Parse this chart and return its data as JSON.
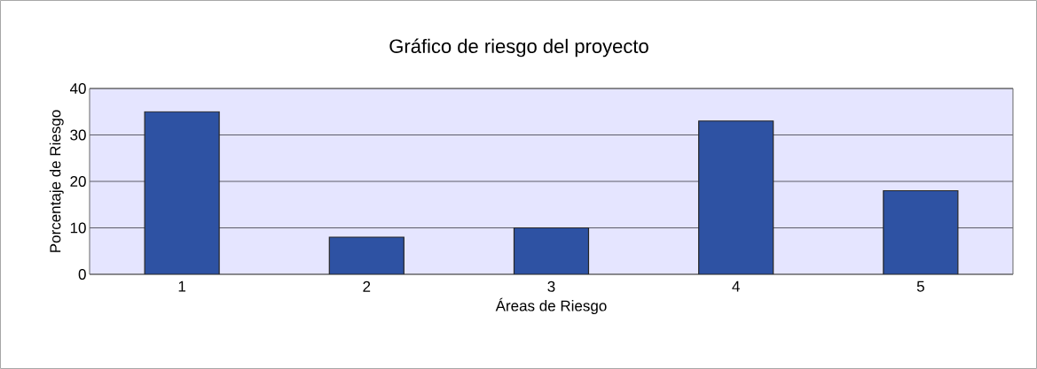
{
  "chart_data": {
    "type": "bar",
    "title": "Gráfico de riesgo del proyecto",
    "xlabel": "Áreas de Riesgo",
    "ylabel": "Porcentaje de Riesgo",
    "categories": [
      "1",
      "2",
      "3",
      "4",
      "5"
    ],
    "values": [
      35,
      8,
      10,
      33,
      18
    ],
    "color": "#2e52a3",
    "ylim": [
      0,
      40
    ],
    "yticks": [
      0,
      10,
      20,
      30,
      40
    ],
    "grid": "y"
  }
}
